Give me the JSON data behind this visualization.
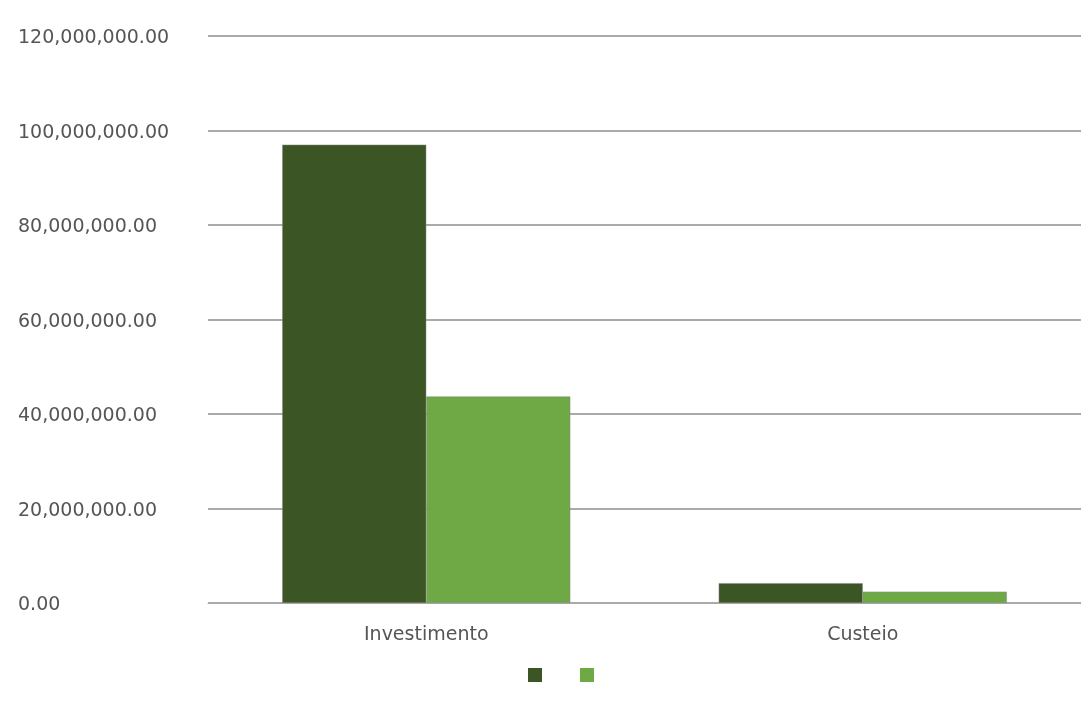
{
  "chart_data": {
    "type": "bar",
    "categories": [
      "Investimento",
      "Custeio"
    ],
    "series": [
      {
        "color": "#3b5524",
        "values": [
          97000000,
          4200000
        ]
      },
      {
        "color": "#6ea946",
        "values": [
          43700000,
          2400000
        ]
      }
    ],
    "ylim": [
      0,
      120000000
    ],
    "yticks": [
      {
        "value": 0,
        "label": "0.00"
      },
      {
        "value": 20000000,
        "label": "20,000,000.00"
      },
      {
        "value": 40000000,
        "label": "40,000,000.00"
      },
      {
        "value": 60000000,
        "label": "60,000,000.00"
      },
      {
        "value": 80000000,
        "label": "80,000,000.00"
      },
      {
        "value": 100000000,
        "label": "100,000,000.00"
      },
      {
        "value": 120000000,
        "label": "120,000,000.00"
      }
    ],
    "grid": "y"
  }
}
